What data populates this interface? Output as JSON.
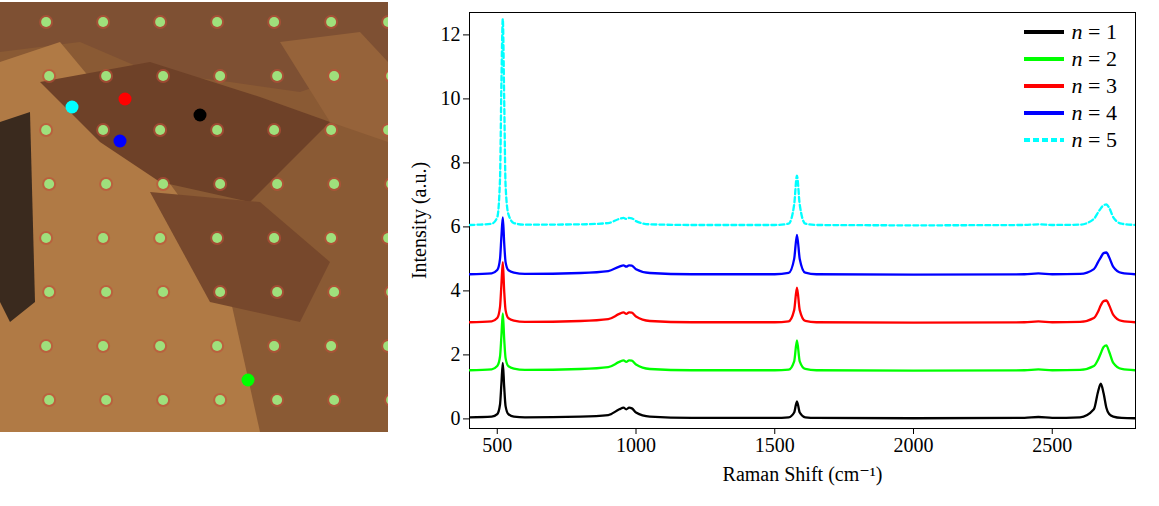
{
  "chart_data": {
    "type": "line",
    "x_label": "Raman Shift (cm⁻¹)",
    "y_label": "Intensity (a.u.)",
    "x": [
      400,
      480,
      500,
      510,
      515,
      520,
      525,
      530,
      540,
      560,
      600,
      800,
      900,
      940,
      955,
      965,
      975,
      985,
      1000,
      1050,
      1200,
      1500,
      1550,
      1570,
      1580,
      1590,
      1610,
      1650,
      2000,
      2400,
      2450,
      2500,
      2600,
      2650,
      2665,
      2675,
      2685,
      2695,
      2705,
      2720,
      2750,
      2800
    ],
    "series": [
      {
        "name": "n = 1",
        "color": "#000000",
        "line_style": "solid",
        "values": [
          0.05,
          0.07,
          0.15,
          0.45,
          1.1,
          1.75,
          1.0,
          0.4,
          0.15,
          0.07,
          0.05,
          0.07,
          0.12,
          0.3,
          0.35,
          0.3,
          0.35,
          0.33,
          0.2,
          0.07,
          0.03,
          0.03,
          0.05,
          0.2,
          0.55,
          0.2,
          0.05,
          0.03,
          0.02,
          0.03,
          0.06,
          0.03,
          0.05,
          0.3,
          0.85,
          1.1,
          0.8,
          0.35,
          0.15,
          0.07,
          0.03,
          0.02
        ]
      },
      {
        "name": "n = 2",
        "color": "#00ff00",
        "line_style": "solid",
        "values": [
          1.52,
          1.55,
          1.65,
          1.95,
          2.6,
          3.3,
          2.5,
          1.9,
          1.65,
          1.57,
          1.53,
          1.56,
          1.62,
          1.78,
          1.83,
          1.78,
          1.83,
          1.82,
          1.7,
          1.56,
          1.52,
          1.52,
          1.54,
          1.8,
          2.45,
          1.8,
          1.56,
          1.52,
          1.51,
          1.52,
          1.55,
          1.52,
          1.53,
          1.65,
          1.85,
          2.05,
          2.25,
          2.3,
          2.1,
          1.75,
          1.56,
          1.52
        ]
      },
      {
        "name": "n = 3",
        "color": "#ff0000",
        "line_style": "solid",
        "values": [
          3.02,
          3.05,
          3.15,
          3.5,
          4.2,
          4.9,
          4.0,
          3.4,
          3.15,
          3.07,
          3.03,
          3.06,
          3.12,
          3.28,
          3.33,
          3.28,
          3.33,
          3.32,
          3.2,
          3.06,
          3.02,
          3.02,
          3.05,
          3.4,
          4.1,
          3.4,
          3.06,
          3.02,
          3.01,
          3.02,
          3.05,
          3.02,
          3.03,
          3.15,
          3.35,
          3.55,
          3.68,
          3.7,
          3.55,
          3.25,
          3.06,
          3.02
        ]
      },
      {
        "name": "n = 4",
        "color": "#0000ff",
        "line_style": "solid",
        "values": [
          4.52,
          4.55,
          4.65,
          5.0,
          5.7,
          6.3,
          5.5,
          4.9,
          4.65,
          4.57,
          4.53,
          4.56,
          4.62,
          4.76,
          4.8,
          4.76,
          4.8,
          4.79,
          4.68,
          4.56,
          4.52,
          4.52,
          4.56,
          5.0,
          5.75,
          5.0,
          4.57,
          4.52,
          4.51,
          4.52,
          4.55,
          4.52,
          4.53,
          4.68,
          4.9,
          5.05,
          5.18,
          5.2,
          5.05,
          4.75,
          4.56,
          4.52
        ]
      },
      {
        "name": "n = 5",
        "color": "#00ffff",
        "line_style": "dashed",
        "values": [
          6.06,
          6.1,
          6.3,
          7.5,
          10.5,
          12.5,
          10.0,
          7.3,
          6.4,
          6.12,
          6.07,
          6.08,
          6.12,
          6.25,
          6.28,
          6.25,
          6.28,
          6.27,
          6.18,
          6.08,
          6.06,
          6.06,
          6.1,
          6.7,
          7.6,
          6.7,
          6.1,
          6.06,
          6.05,
          6.06,
          6.08,
          6.06,
          6.07,
          6.25,
          6.45,
          6.58,
          6.68,
          6.7,
          6.6,
          6.3,
          6.1,
          6.06
        ]
      }
    ],
    "xlim": [
      400,
      2800
    ],
    "xticks": [
      500,
      1000,
      1500,
      2000,
      2500
    ],
    "ylim": [
      -0.3,
      12.7
    ],
    "yticks": [
      0,
      2,
      4,
      6,
      8,
      10,
      12
    ],
    "legend": "upper right",
    "grid": false
  }
}
